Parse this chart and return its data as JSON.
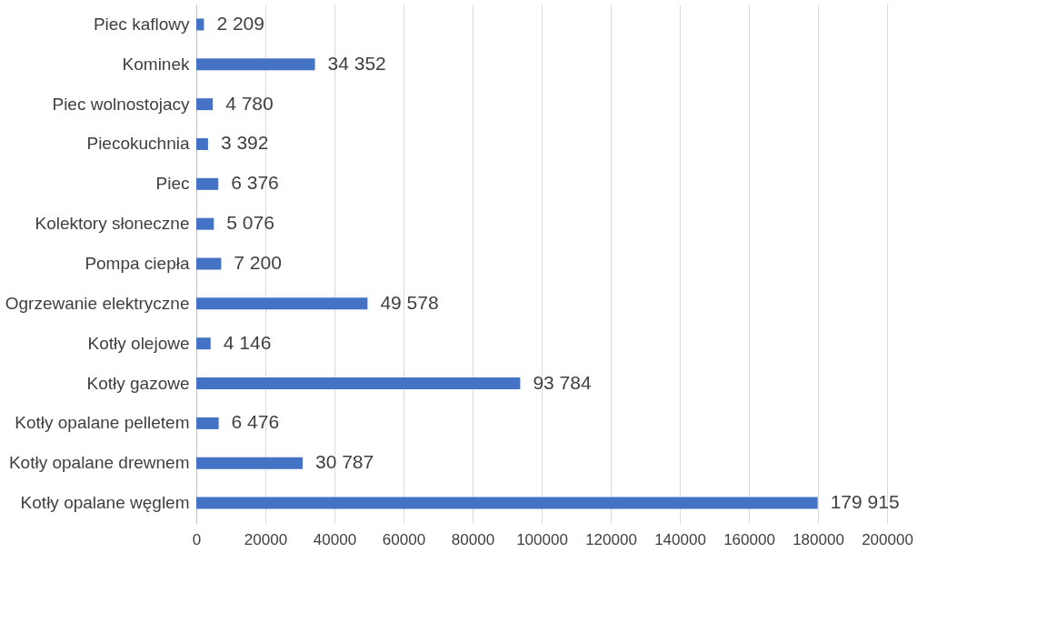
{
  "chart_data": {
    "type": "bar",
    "orientation": "horizontal",
    "categories": [
      "Piec kaflowy",
      "Kominek",
      "Piec wolnostojacy",
      "Piecokuchnia",
      "Piec",
      "Kolektory słoneczne",
      "Pompa ciepła",
      "Ogrzewanie elektryczne",
      "Kotły olejowe",
      "Kotły gazowe",
      "Kotły opalane pelletem",
      "Kotły opalane drewnem",
      "Kotły opalane węglem"
    ],
    "values": [
      2209,
      34352,
      4780,
      3392,
      6376,
      5076,
      7200,
      49578,
      4146,
      93784,
      6476,
      30787,
      179915
    ],
    "value_labels": [
      "2 209",
      "34 352",
      "4 780",
      "3 392",
      "6 376",
      "5 076",
      "7 200",
      "49 578",
      "4 146",
      "93 784",
      "6 476",
      "30 787",
      "179 915"
    ],
    "color": "#4472c4",
    "xlim": [
      0,
      200000
    ],
    "xticks": [
      0,
      20000,
      40000,
      60000,
      80000,
      100000,
      120000,
      140000,
      160000,
      180000,
      200000
    ],
    "grid": "x"
  }
}
